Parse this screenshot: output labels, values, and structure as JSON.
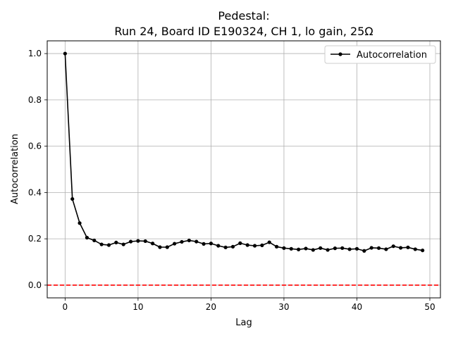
{
  "chart_data": {
    "type": "line",
    "title_line1": "Pedestal:",
    "title_line2": "Run 24, Board ID E190324, CH 1, lo gain, 25Ω",
    "xlabel": "Lag",
    "ylabel": "Autocorrelation",
    "xlim": [
      -2.45,
      51.45
    ],
    "ylim": [
      -0.055,
      1.055
    ],
    "xticks": [
      0,
      10,
      20,
      30,
      40,
      50
    ],
    "yticks": [
      0.0,
      0.2,
      0.4,
      0.6,
      0.8,
      1.0
    ],
    "xtick_labels": [
      "0",
      "10",
      "20",
      "30",
      "40",
      "50"
    ],
    "ytick_labels": [
      "0.0",
      "0.2",
      "0.4",
      "0.6",
      "0.8",
      "1.0"
    ],
    "grid": true,
    "legend_position": "top-right",
    "series": [
      {
        "name": "Autocorrelation",
        "color": "#000000",
        "marker": "circle",
        "x": [
          0,
          1,
          2,
          3,
          4,
          5,
          6,
          7,
          8,
          9,
          10,
          11,
          12,
          13,
          14,
          15,
          16,
          17,
          18,
          19,
          20,
          21,
          22,
          23,
          24,
          25,
          26,
          27,
          28,
          29,
          30,
          31,
          32,
          33,
          34,
          35,
          36,
          37,
          38,
          39,
          40,
          41,
          42,
          43,
          44,
          45,
          46,
          47,
          48,
          49
        ],
        "values": [
          1.0,
          0.372,
          0.268,
          0.205,
          0.193,
          0.176,
          0.173,
          0.184,
          0.176,
          0.188,
          0.191,
          0.19,
          0.18,
          0.164,
          0.164,
          0.179,
          0.187,
          0.193,
          0.188,
          0.178,
          0.18,
          0.17,
          0.163,
          0.166,
          0.181,
          0.173,
          0.17,
          0.172,
          0.185,
          0.166,
          0.16,
          0.157,
          0.154,
          0.158,
          0.152,
          0.16,
          0.152,
          0.159,
          0.16,
          0.155,
          0.157,
          0.148,
          0.161,
          0.16,
          0.155,
          0.168,
          0.161,
          0.163,
          0.155,
          0.15
        ]
      }
    ],
    "reference_line": {
      "y": 0.0,
      "color": "#ff0000",
      "style": "dashed"
    }
  }
}
